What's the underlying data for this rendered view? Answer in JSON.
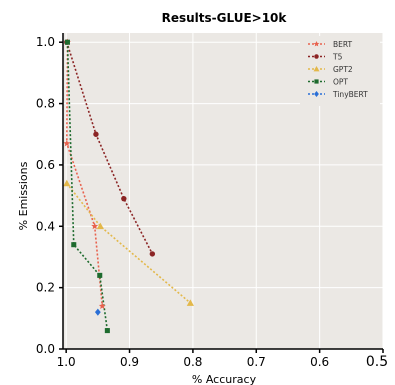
{
  "chart_data": {
    "type": "line",
    "title": "Results-GLUE>10k",
    "xlabel": "% Accuracy",
    "ylabel": "% Emissions",
    "x_reversed": true,
    "xlim": [
      1.005,
      0.5
    ],
    "ylim": [
      0.0,
      1.03
    ],
    "xticks": [
      1.0,
      0.9,
      0.8,
      0.7,
      0.6,
      0.5
    ],
    "xtick_labels": [
      "1.0",
      "0.9",
      "0.8",
      "0.7",
      "0.6",
      "0.5"
    ],
    "yticks": [
      0.0,
      0.2,
      0.4,
      0.6,
      0.8,
      1.0
    ],
    "ytick_labels": [
      "0.0",
      "0.2",
      "0.4",
      "0.6",
      "0.8",
      "1.0"
    ],
    "grid": true,
    "legend_position": "top-right",
    "series": [
      {
        "name": "BERT",
        "color": "#e8624e",
        "marker": "star",
        "x": [
          0.998,
          0.999,
          0.955,
          0.943
        ],
        "y": [
          1.0,
          0.67,
          0.4,
          0.14
        ]
      },
      {
        "name": "T5",
        "color": "#8b2424",
        "marker": "circle",
        "x": [
          0.999,
          0.953,
          0.909,
          0.864
        ],
        "y": [
          1.0,
          0.7,
          0.49,
          0.31
        ]
      },
      {
        "name": "GPT2",
        "color": "#e3b84a",
        "marker": "triangle",
        "x": [
          0.999,
          0.946,
          0.804
        ],
        "y": [
          0.54,
          0.4,
          0.15
        ]
      },
      {
        "name": "OPT",
        "color": "#1e6b2e",
        "marker": "square",
        "x": [
          0.998,
          0.988,
          0.947,
          0.935
        ],
        "y": [
          1.0,
          0.34,
          0.24,
          0.06
        ]
      },
      {
        "name": "TinyBERT",
        "color": "#2a6fd6",
        "marker": "diamond",
        "x": [
          0.95
        ],
        "y": [
          0.12
        ]
      }
    ]
  }
}
